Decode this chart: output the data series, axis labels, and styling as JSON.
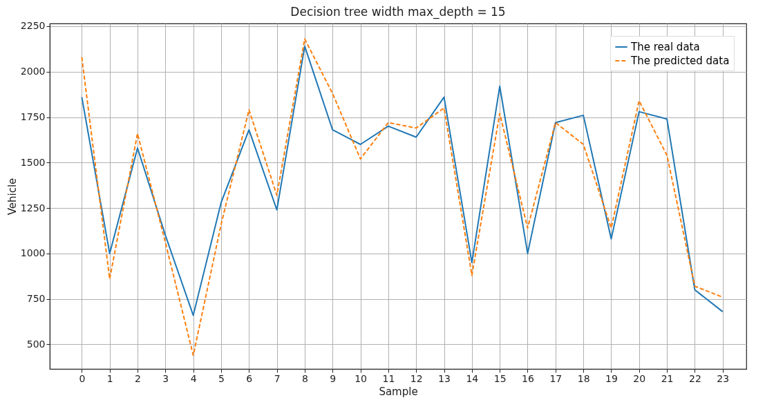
{
  "chart_data": {
    "type": "line",
    "title": "Decision tree width max_depth = 15",
    "xlabel": "Sample",
    "ylabel": "Vehicle",
    "x": [
      0,
      1,
      2,
      3,
      4,
      5,
      6,
      7,
      8,
      9,
      10,
      11,
      12,
      13,
      14,
      15,
      16,
      17,
      18,
      19,
      20,
      21,
      22,
      23
    ],
    "series": [
      {
        "name": "The real data",
        "color": "#1f77b4",
        "line_style": "solid",
        "values": [
          1860,
          1000,
          1580,
          1100,
          660,
          1280,
          1680,
          1240,
          2140,
          1680,
          1600,
          1700,
          1640,
          1860,
          950,
          1920,
          1000,
          1720,
          1760,
          1080,
          1780,
          1740,
          800,
          680
        ]
      },
      {
        "name": "The predicted data",
        "color": "#ff7f0e",
        "line_style": "dashed",
        "values": [
          2080,
          860,
          1660,
          1060,
          440,
          1160,
          1790,
          1320,
          2180,
          1880,
          1520,
          1720,
          1690,
          1800,
          880,
          1770,
          1140,
          1720,
          1600,
          1140,
          1840,
          1540,
          820,
          760
        ]
      }
    ],
    "xlim": [
      -1.15,
      23.85
    ],
    "ylim": [
      365,
      2265
    ],
    "xticks": [
      0,
      1,
      2,
      3,
      4,
      5,
      6,
      7,
      8,
      9,
      10,
      11,
      12,
      13,
      14,
      15,
      16,
      17,
      18,
      19,
      20,
      21,
      22,
      23
    ],
    "yticks": [
      500,
      750,
      1000,
      1250,
      1500,
      1750,
      2000,
      2250
    ],
    "grid": true,
    "legend": "top right",
    "marker": "none"
  }
}
